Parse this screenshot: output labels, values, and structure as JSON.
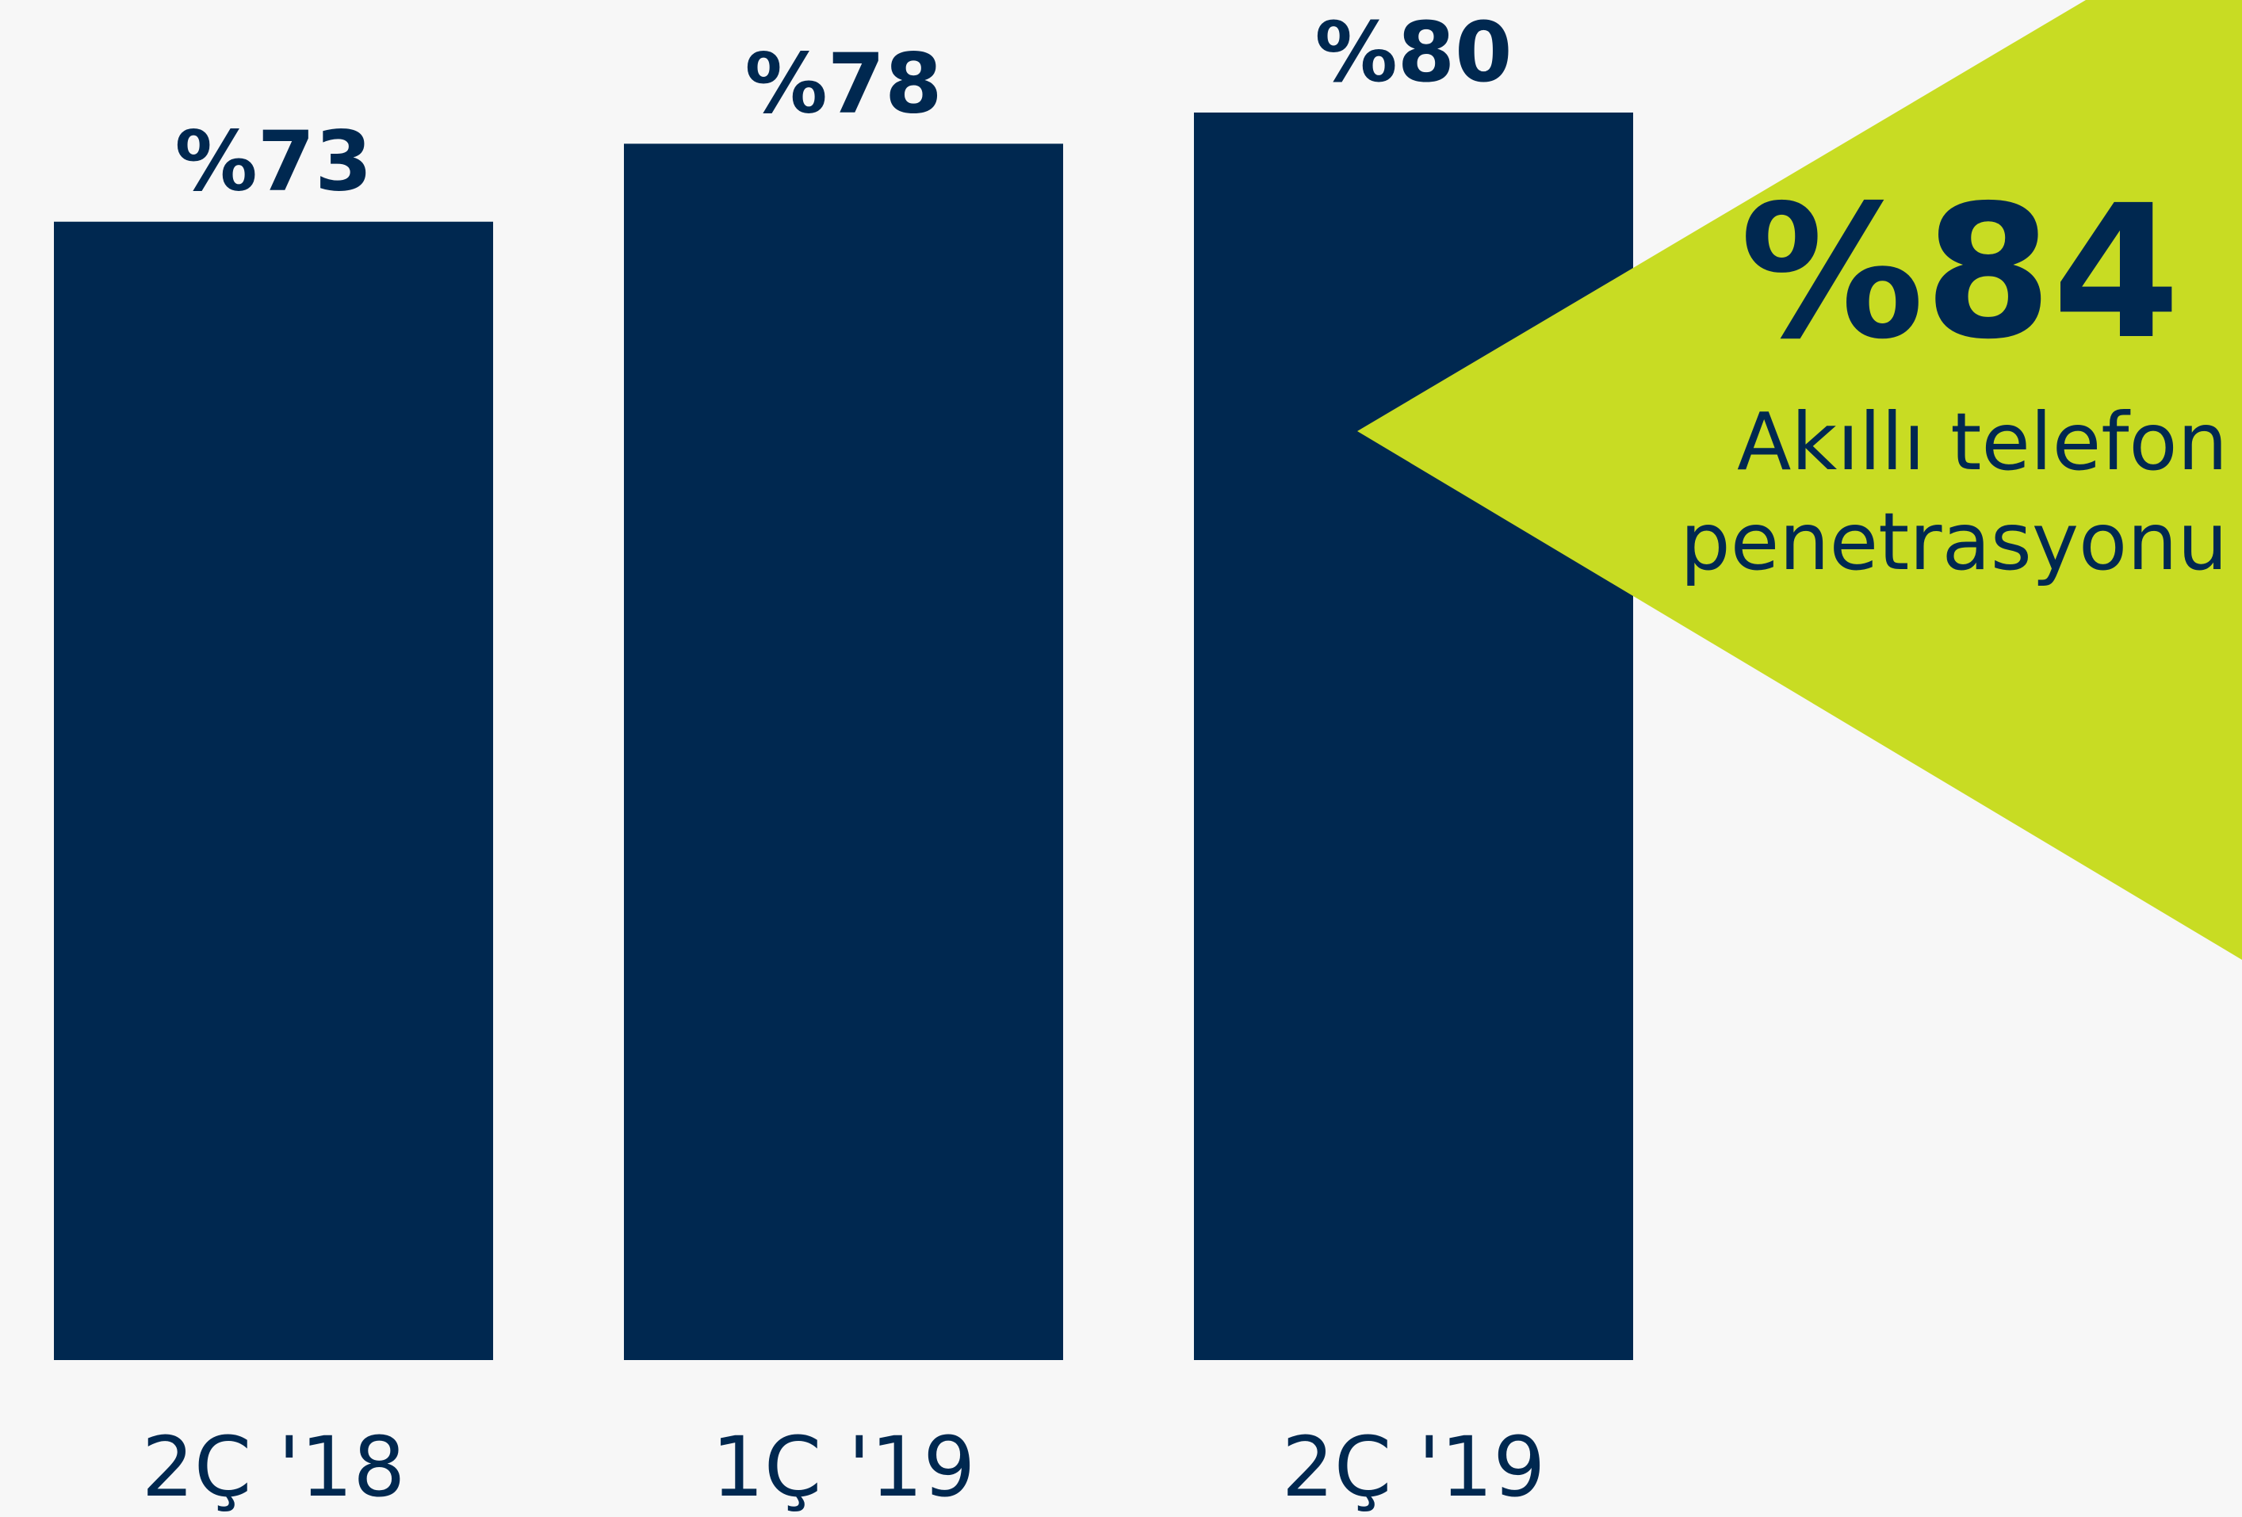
{
  "chart_data": {
    "type": "bar",
    "categories": [
      "2Ç '18",
      "1Ç '19",
      "2Ç '19"
    ],
    "values": [
      73,
      78,
      80
    ],
    "value_labels": [
      "%73",
      "%78",
      "%80"
    ],
    "title": "",
    "xlabel": "",
    "ylabel": "",
    "ylim": [
      0,
      80
    ],
    "grid": false,
    "legend": "none",
    "colors": {
      "bar": "#002850",
      "text": "#002850",
      "callout": "#c8dc23",
      "background": "#f7f7f7"
    },
    "callout": {
      "value": 84,
      "value_label": "%84",
      "lines": [
        "Akıllı telefon",
        "penetrasyonu"
      ]
    }
  }
}
